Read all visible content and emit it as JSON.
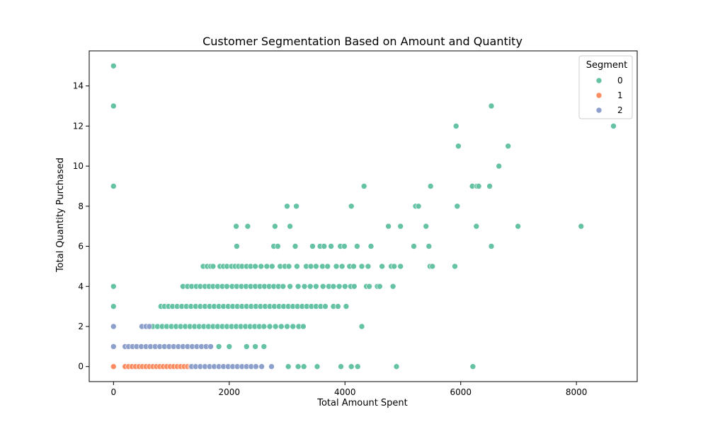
{
  "chart_data": {
    "type": "scatter",
    "title": "Customer Segmentation Based on Amount and Quantity",
    "xlabel": "Total Amount Spent",
    "ylabel": "Total Quantity Purchased",
    "xlim": [
      -420,
      9050
    ],
    "ylim": [
      -0.75,
      15.75
    ],
    "xticks": [
      0,
      2000,
      4000,
      6000,
      8000
    ],
    "yticks": [
      0,
      2,
      4,
      6,
      8,
      10,
      12,
      14
    ],
    "grid": false,
    "legend": {
      "title": "Segment",
      "position": "top-right"
    },
    "series": [
      {
        "name": "0",
        "color": "#66c2a5",
        "points": [
          [
            0,
            15
          ],
          [
            0,
            13
          ],
          [
            0,
            9
          ],
          [
            0,
            4
          ],
          [
            0,
            3
          ],
          [
            6530,
            13
          ],
          [
            5920,
            12
          ],
          [
            8640,
            12
          ],
          [
            5960,
            11
          ],
          [
            6820,
            11
          ],
          [
            6660,
            10
          ],
          [
            4330,
            9
          ],
          [
            5480,
            9
          ],
          [
            6200,
            9
          ],
          [
            6280,
            9
          ],
          [
            6310,
            9
          ],
          [
            6500,
            9
          ],
          [
            3000,
            8
          ],
          [
            3160,
            8
          ],
          [
            4110,
            8
          ],
          [
            5220,
            8
          ],
          [
            5270,
            8
          ],
          [
            5940,
            8
          ],
          [
            2120,
            7
          ],
          [
            2320,
            7
          ],
          [
            2790,
            7
          ],
          [
            3050,
            7
          ],
          [
            4750,
            7
          ],
          [
            4960,
            7
          ],
          [
            5400,
            7
          ],
          [
            6270,
            7
          ],
          [
            6990,
            7
          ],
          [
            8080,
            7
          ],
          [
            2130,
            6
          ],
          [
            2770,
            6
          ],
          [
            2840,
            6
          ],
          [
            3140,
            6
          ],
          [
            3440,
            6
          ],
          [
            3570,
            6
          ],
          [
            3640,
            6
          ],
          [
            3760,
            6
          ],
          [
            3920,
            6
          ],
          [
            3990,
            6
          ],
          [
            4210,
            6
          ],
          [
            4450,
            6
          ],
          [
            5190,
            6
          ],
          [
            5450,
            6
          ],
          [
            6530,
            6
          ],
          [
            1550,
            5
          ],
          [
            1620,
            5
          ],
          [
            1680,
            5
          ],
          [
            1720,
            5
          ],
          [
            1840,
            5
          ],
          [
            1900,
            5
          ],
          [
            1960,
            5
          ],
          [
            2040,
            5
          ],
          [
            2100,
            5
          ],
          [
            2160,
            5
          ],
          [
            2220,
            5
          ],
          [
            2300,
            5
          ],
          [
            2370,
            5
          ],
          [
            2450,
            5
          ],
          [
            2550,
            5
          ],
          [
            2650,
            5
          ],
          [
            2740,
            5
          ],
          [
            2880,
            5
          ],
          [
            2960,
            5
          ],
          [
            3030,
            5
          ],
          [
            3170,
            5
          ],
          [
            3330,
            5
          ],
          [
            3410,
            5
          ],
          [
            3500,
            5
          ],
          [
            3610,
            5
          ],
          [
            3700,
            5
          ],
          [
            3850,
            5
          ],
          [
            3950,
            5
          ],
          [
            4080,
            5
          ],
          [
            4150,
            5
          ],
          [
            4290,
            5
          ],
          [
            4400,
            5
          ],
          [
            4640,
            5
          ],
          [
            4800,
            5
          ],
          [
            4850,
            5
          ],
          [
            4960,
            5
          ],
          [
            5470,
            5
          ],
          [
            5510,
            5
          ],
          [
            5900,
            5
          ],
          [
            1200,
            4
          ],
          [
            1280,
            4
          ],
          [
            1350,
            4
          ],
          [
            1430,
            4
          ],
          [
            1500,
            4
          ],
          [
            1580,
            4
          ],
          [
            1650,
            4
          ],
          [
            1720,
            4
          ],
          [
            1800,
            4
          ],
          [
            1880,
            4
          ],
          [
            1960,
            4
          ],
          [
            2050,
            4
          ],
          [
            2130,
            4
          ],
          [
            2210,
            4
          ],
          [
            2290,
            4
          ],
          [
            2370,
            4
          ],
          [
            2450,
            4
          ],
          [
            2530,
            4
          ],
          [
            2610,
            4
          ],
          [
            2690,
            4
          ],
          [
            2770,
            4
          ],
          [
            2850,
            4
          ],
          [
            2930,
            4
          ],
          [
            3050,
            4
          ],
          [
            3190,
            4
          ],
          [
            3300,
            4
          ],
          [
            3400,
            4
          ],
          [
            3500,
            4
          ],
          [
            3620,
            4
          ],
          [
            3720,
            4
          ],
          [
            3800,
            4
          ],
          [
            3900,
            4
          ],
          [
            4000,
            4
          ],
          [
            4100,
            4
          ],
          [
            4160,
            4
          ],
          [
            4370,
            4
          ],
          [
            4420,
            4
          ],
          [
            4560,
            4
          ],
          [
            4600,
            4
          ],
          [
            4830,
            4
          ],
          [
            820,
            3
          ],
          [
            880,
            3
          ],
          [
            950,
            3
          ],
          [
            1020,
            3
          ],
          [
            1100,
            3
          ],
          [
            1180,
            3
          ],
          [
            1260,
            3
          ],
          [
            1340,
            3
          ],
          [
            1420,
            3
          ],
          [
            1500,
            3
          ],
          [
            1580,
            3
          ],
          [
            1660,
            3
          ],
          [
            1740,
            3
          ],
          [
            1820,
            3
          ],
          [
            1900,
            3
          ],
          [
            1980,
            3
          ],
          [
            2060,
            3
          ],
          [
            2140,
            3
          ],
          [
            2220,
            3
          ],
          [
            2300,
            3
          ],
          [
            2380,
            3
          ],
          [
            2460,
            3
          ],
          [
            2540,
            3
          ],
          [
            2620,
            3
          ],
          [
            2700,
            3
          ],
          [
            2780,
            3
          ],
          [
            2860,
            3
          ],
          [
            2940,
            3
          ],
          [
            3020,
            3
          ],
          [
            3100,
            3
          ],
          [
            3180,
            3
          ],
          [
            3260,
            3
          ],
          [
            3340,
            3
          ],
          [
            3420,
            3
          ],
          [
            3500,
            3
          ],
          [
            3580,
            3
          ],
          [
            3660,
            3
          ],
          [
            3800,
            3
          ],
          [
            3880,
            3
          ],
          [
            4020,
            3
          ],
          [
            600,
            2
          ],
          [
            680,
            2
          ],
          [
            760,
            2
          ],
          [
            840,
            2
          ],
          [
            920,
            2
          ],
          [
            1000,
            2
          ],
          [
            1080,
            2
          ],
          [
            1160,
            2
          ],
          [
            1240,
            2
          ],
          [
            1320,
            2
          ],
          [
            1400,
            2
          ],
          [
            1480,
            2
          ],
          [
            1560,
            2
          ],
          [
            1640,
            2
          ],
          [
            1720,
            2
          ],
          [
            1800,
            2
          ],
          [
            1880,
            2
          ],
          [
            1960,
            2
          ],
          [
            2040,
            2
          ],
          [
            2120,
            2
          ],
          [
            2200,
            2
          ],
          [
            2280,
            2
          ],
          [
            2360,
            2
          ],
          [
            2440,
            2
          ],
          [
            2520,
            2
          ],
          [
            2600,
            2
          ],
          [
            2700,
            2
          ],
          [
            2800,
            2
          ],
          [
            2900,
            2
          ],
          [
            3000,
            2
          ],
          [
            3100,
            2
          ],
          [
            3200,
            2
          ],
          [
            3280,
            2
          ],
          [
            4290,
            2
          ],
          [
            1820,
            1
          ],
          [
            2000,
            1
          ],
          [
            2300,
            1
          ],
          [
            2450,
            1
          ],
          [
            2600,
            1
          ],
          [
            3020,
            0
          ],
          [
            3190,
            0
          ],
          [
            3290,
            0
          ],
          [
            3520,
            0
          ],
          [
            3930,
            0
          ],
          [
            4110,
            0
          ],
          [
            4220,
            0
          ],
          [
            4890,
            0
          ],
          [
            6210,
            0
          ]
        ]
      },
      {
        "name": "1",
        "color": "#fc8d62",
        "points": [
          [
            0,
            0
          ],
          [
            200,
            0
          ],
          [
            260,
            0
          ],
          [
            320,
            0
          ],
          [
            380,
            0
          ],
          [
            440,
            0
          ],
          [
            500,
            0
          ],
          [
            560,
            0
          ],
          [
            620,
            0
          ],
          [
            680,
            0
          ],
          [
            740,
            0
          ],
          [
            800,
            0
          ],
          [
            860,
            0
          ],
          [
            920,
            0
          ],
          [
            980,
            0
          ],
          [
            1040,
            0
          ],
          [
            1100,
            0
          ],
          [
            1160,
            0
          ],
          [
            1220,
            0
          ],
          [
            1280,
            0
          ],
          [
            1330,
            0
          ]
        ]
      },
      {
        "name": "2",
        "color": "#8da0cb",
        "points": [
          [
            0,
            2
          ],
          [
            0,
            1
          ],
          [
            490,
            2
          ],
          [
            560,
            2
          ],
          [
            620,
            2
          ],
          [
            200,
            1
          ],
          [
            260,
            1
          ],
          [
            330,
            1
          ],
          [
            400,
            1
          ],
          [
            480,
            1
          ],
          [
            560,
            1
          ],
          [
            640,
            1
          ],
          [
            720,
            1
          ],
          [
            800,
            1
          ],
          [
            880,
            1
          ],
          [
            960,
            1
          ],
          [
            1040,
            1
          ],
          [
            1120,
            1
          ],
          [
            1200,
            1
          ],
          [
            1280,
            1
          ],
          [
            1360,
            1
          ],
          [
            1440,
            1
          ],
          [
            1520,
            1
          ],
          [
            1600,
            1
          ],
          [
            1680,
            1
          ],
          [
            1350,
            0
          ],
          [
            1420,
            0
          ],
          [
            1500,
            0
          ],
          [
            1580,
            0
          ],
          [
            1660,
            0
          ],
          [
            1740,
            0
          ],
          [
            1820,
            0
          ],
          [
            1900,
            0
          ],
          [
            1980,
            0
          ],
          [
            2060,
            0
          ],
          [
            2140,
            0
          ],
          [
            2220,
            0
          ],
          [
            2300,
            0
          ],
          [
            2380,
            0
          ],
          [
            2460,
            0
          ],
          [
            2560,
            0
          ],
          [
            2730,
            0
          ]
        ]
      }
    ]
  }
}
